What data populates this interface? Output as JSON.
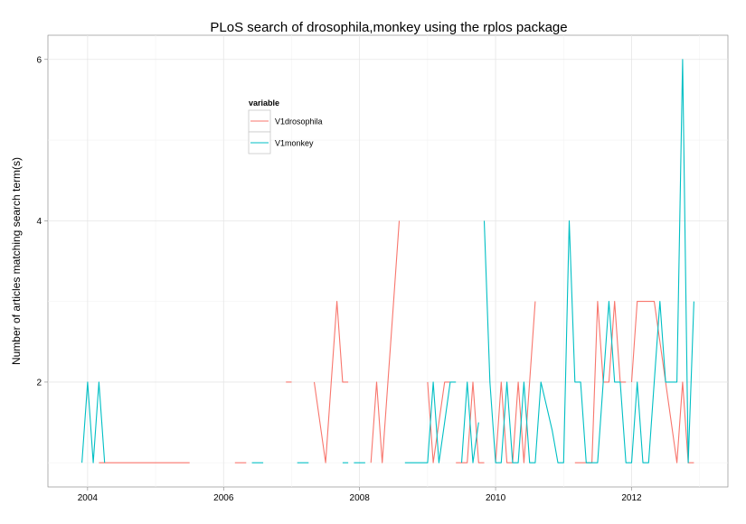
{
  "chart_data": {
    "type": "line",
    "title": "PLoS search of drosophila,monkey using the rplos package",
    "xlabel": "",
    "ylabel": "Number of articles matching search term(s)",
    "x_ticks": [
      "2004",
      "2006",
      "2008",
      "2010",
      "2012"
    ],
    "y_ticks": [
      "2",
      "4",
      "6"
    ],
    "xlim": [
      "2003-06",
      "2013-06"
    ],
    "ylim": [
      0.7,
      6.3
    ],
    "grid": true,
    "legend": {
      "title": "variable",
      "position": "top-left (inside plot)"
    },
    "series": [
      {
        "name": "V1drosophila",
        "color": "#F8766D",
        "segments": [
          [
            [
              "2004-03",
              1
            ],
            [
              "2004-04",
              1
            ],
            [
              "2004-05",
              1
            ],
            [
              "2004-06",
              1
            ],
            [
              "2004-07",
              1
            ],
            [
              "2004-08",
              1
            ],
            [
              "2004-09",
              1
            ],
            [
              "2004-10",
              1
            ],
            [
              "2004-11",
              1
            ],
            [
              "2004-12",
              1
            ],
            [
              "2005-01",
              1
            ],
            [
              "2005-02",
              1
            ],
            [
              "2005-03",
              1
            ],
            [
              "2005-04",
              1
            ],
            [
              "2005-05",
              1
            ],
            [
              "2005-06",
              1
            ],
            [
              "2005-07",
              1
            ]
          ],
          [
            [
              "2006-03",
              1
            ],
            [
              "2006-05",
              1
            ]
          ],
          [
            [
              "2006-12",
              2
            ],
            [
              "2007-01",
              2
            ]
          ],
          [
            [
              "2007-05",
              2
            ],
            [
              "2007-07",
              1
            ],
            [
              "2007-08",
              2
            ],
            [
              "2007-09",
              3
            ],
            [
              "2007-10",
              2
            ],
            [
              "2007-11",
              2
            ]
          ],
          [
            [
              "2008-03",
              1
            ],
            [
              "2008-04",
              2
            ],
            [
              "2008-05",
              1
            ],
            [
              "2008-07",
              3
            ],
            [
              "2008-08",
              4
            ]
          ],
          [
            [
              "2009-01",
              2
            ],
            [
              "2009-02",
              1
            ],
            [
              "2009-04",
              2
            ],
            [
              "2009-05",
              2
            ]
          ],
          [
            [
              "2009-06",
              1
            ],
            [
              "2009-08",
              1
            ],
            [
              "2009-09",
              2
            ],
            [
              "2009-10",
              1
            ],
            [
              "2009-11",
              1
            ]
          ],
          [
            [
              "2010-01",
              1
            ],
            [
              "2010-02",
              2
            ],
            [
              "2010-03",
              1
            ],
            [
              "2010-04",
              1
            ],
            [
              "2010-05",
              2
            ],
            [
              "2010-06",
              1
            ],
            [
              "2010-07",
              2
            ],
            [
              "2010-08",
              3
            ]
          ],
          [
            [
              "2011-03",
              1
            ],
            [
              "2011-06",
              1
            ],
            [
              "2011-07",
              3
            ],
            [
              "2011-08",
              2
            ],
            [
              "2011-09",
              2
            ],
            [
              "2011-10",
              3
            ],
            [
              "2011-11",
              2
            ],
            [
              "2011-12",
              2
            ]
          ],
          [
            [
              "2012-01",
              2
            ],
            [
              "2012-02",
              3
            ],
            [
              "2012-03",
              3
            ],
            [
              "2012-04",
              3
            ],
            [
              "2012-05",
              3
            ],
            [
              "2012-07",
              2
            ],
            [
              "2012-09",
              1
            ],
            [
              "2012-10",
              2
            ],
            [
              "2012-11",
              1
            ],
            [
              "2012-12",
              1
            ]
          ]
        ]
      },
      {
        "name": "V1monkey",
        "color": "#00BFC4",
        "segments": [
          [
            [
              "2003-12",
              1
            ],
            [
              "2004-01",
              2
            ],
            [
              "2004-02",
              1
            ],
            [
              "2004-03",
              2
            ],
            [
              "2004-04",
              1
            ]
          ],
          [
            [
              "2006-06",
              1
            ],
            [
              "2006-08",
              1
            ]
          ],
          [
            [
              "2007-02",
              1
            ],
            [
              "2007-04",
              1
            ]
          ],
          [
            [
              "2007-10",
              1
            ],
            [
              "2007-11",
              1
            ]
          ],
          [
            [
              "2007-12",
              1
            ],
            [
              "2008-01",
              1
            ],
            [
              "2008-02",
              1
            ]
          ],
          [
            [
              "2008-09",
              1
            ],
            [
              "2008-10",
              1
            ],
            [
              "2008-11",
              1
            ],
            [
              "2008-12",
              1
            ],
            [
              "2009-01",
              1
            ],
            [
              "2009-02",
              2
            ],
            [
              "2009-03",
              1
            ],
            [
              "2009-04",
              1.5
            ],
            [
              "2009-05",
              2
            ],
            [
              "2009-06",
              2
            ]
          ],
          [
            [
              "2009-07",
              1
            ],
            [
              "2009-08",
              2
            ],
            [
              "2009-09",
              1
            ],
            [
              "2009-10",
              1.5
            ]
          ],
          [
            [
              "2009-11",
              4
            ],
            [
              "2009-12",
              2
            ],
            [
              "2010-01",
              1
            ],
            [
              "2010-02",
              1
            ],
            [
              "2010-03",
              2
            ],
            [
              "2010-04",
              1
            ],
            [
              "2010-05",
              1
            ],
            [
              "2010-06",
              2
            ],
            [
              "2010-07",
              1
            ],
            [
              "2010-08",
              1
            ],
            [
              "2010-09",
              2
            ],
            [
              "2010-10",
              1.7
            ],
            [
              "2010-11",
              1.4
            ],
            [
              "2010-12",
              1
            ],
            [
              "2011-01",
              1
            ],
            [
              "2011-02",
              4
            ],
            [
              "2011-03",
              2
            ],
            [
              "2011-04",
              2
            ],
            [
              "2011-05",
              1
            ],
            [
              "2011-06",
              1
            ],
            [
              "2011-07",
              1
            ],
            [
              "2011-08",
              2
            ],
            [
              "2011-09",
              3
            ],
            [
              "2011-10",
              2
            ],
            [
              "2011-11",
              2
            ],
            [
              "2011-12",
              1
            ],
            [
              "2012-01",
              1
            ],
            [
              "2012-02",
              2
            ],
            [
              "2012-03",
              1
            ],
            [
              "2012-04",
              1
            ],
            [
              "2012-05",
              2
            ],
            [
              "2012-06",
              3
            ],
            [
              "2012-07",
              2
            ],
            [
              "2012-08",
              2
            ],
            [
              "2012-09",
              2
            ],
            [
              "2012-10",
              6
            ],
            [
              "2012-11",
              1
            ],
            [
              "2012-12",
              3
            ]
          ]
        ]
      }
    ]
  }
}
